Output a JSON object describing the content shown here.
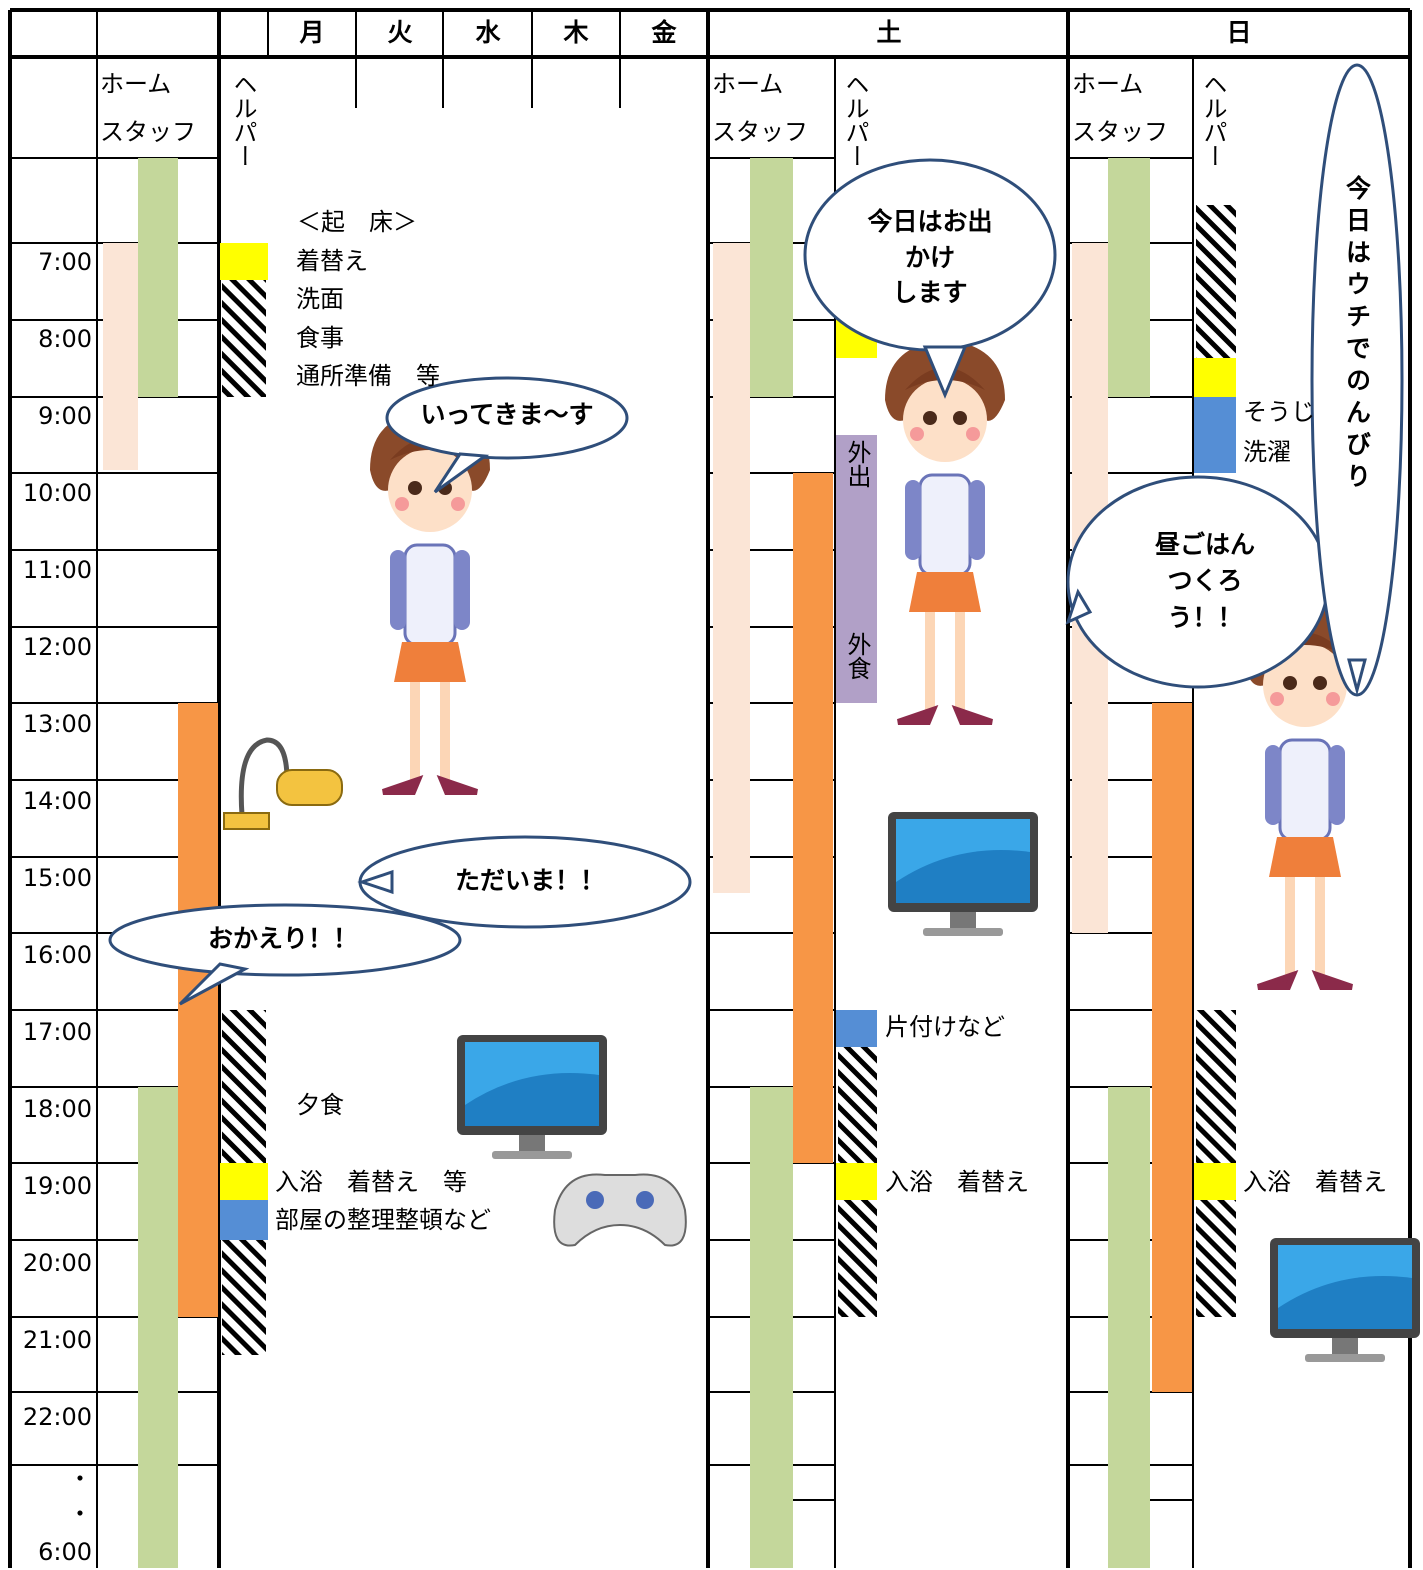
{
  "header": {
    "days": [
      "月",
      "火",
      "水",
      "木",
      "金",
      "土",
      "日"
    ]
  },
  "sections": [
    {
      "home_label": [
        "ホーム",
        "スタッフ"
      ],
      "helper_label": "ヘルパー"
    },
    {
      "home_label": [
        "ホーム",
        "スタッフ"
      ],
      "helper_label": "ヘルパー"
    },
    {
      "home_label": [
        "ホーム",
        "スタッフ"
      ],
      "helper_label": "ヘルパー"
    }
  ],
  "times": [
    "7:00",
    "8:00",
    "9:00",
    "10:00",
    "11:00",
    "12:00",
    "13:00",
    "14:00",
    "15:00",
    "16:00",
    "17:00",
    "18:00",
    "19:00",
    "20:00",
    "21:00",
    "22:00",
    "・",
    "・",
    "6:00"
  ],
  "weekday_notes": [
    "＜起　床＞",
    "着替え",
    "洗面",
    "食事",
    "通所準備　等",
    "夕食",
    "入浴　着替え　等",
    "部屋の整理整頓など"
  ],
  "saturday_notes": [
    "外出",
    "外食",
    "片付けなど",
    "入浴　着替え"
  ],
  "sunday_notes": [
    "そうじ",
    "洗濯",
    "入浴　着替え"
  ],
  "bubbles": [
    {
      "lines": [
        "いってきま～す"
      ]
    },
    {
      "lines": [
        "ただいま！！"
      ]
    },
    {
      "lines": [
        "おかえり！！"
      ]
    },
    {
      "lines": [
        "今日はお出",
        "かけ",
        "します"
      ]
    },
    {
      "lines": [
        "昼ごはん",
        "つくろ",
        "う！！"
      ]
    },
    {
      "lines": [
        "今日はウチでのんびり"
      ]
    }
  ]
}
